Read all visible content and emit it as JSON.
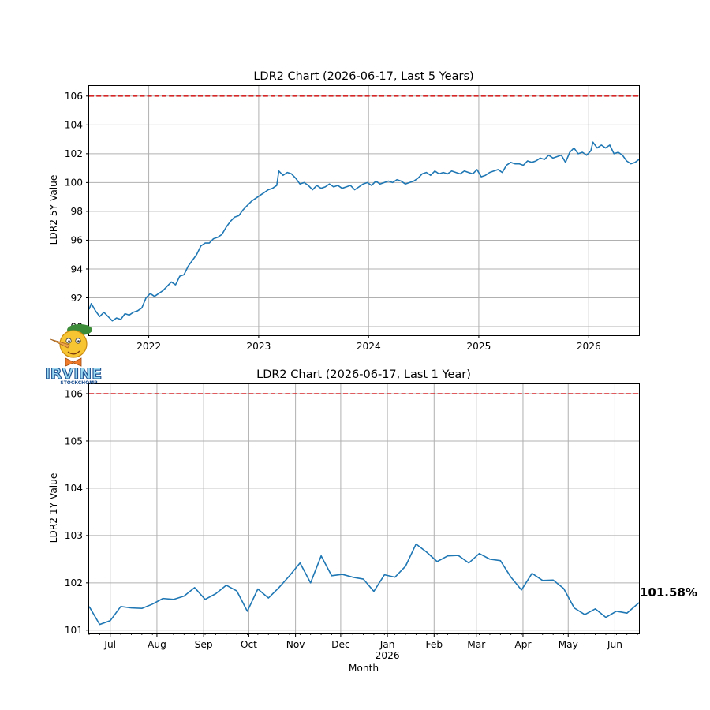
{
  "chart_data": [
    {
      "type": "line",
      "title": "LDR2 Chart (2026-06-17, Last 5 Years)",
      "ylabel": "LDR2 5Y Value",
      "xlabel": "",
      "x_range": [
        "2021-06-17",
        "2026-06-17"
      ],
      "ylim": [
        89.4,
        106.7
      ],
      "y_ticks": [
        90,
        92,
        94,
        96,
        98,
        100,
        102,
        104,
        106
      ],
      "x_ticks": [
        {
          "date": "2022-01-01",
          "label": "2022"
        },
        {
          "date": "2023-01-01",
          "label": "2023"
        },
        {
          "date": "2024-01-01",
          "label": "2024"
        },
        {
          "date": "2025-01-01",
          "label": "2025"
        },
        {
          "date": "2026-01-01",
          "label": "2026"
        }
      ],
      "reference_line": {
        "y": 106,
        "color": "#d62728",
        "style": "dashed"
      },
      "grid": true,
      "series": [
        {
          "color": "#1f77b4",
          "points": [
            [
              "2021-06-17",
              91.2
            ],
            [
              "2021-06-24",
              91.6
            ],
            [
              "2021-07-08",
              91.1
            ],
            [
              "2021-07-22",
              90.7
            ],
            [
              "2021-08-05",
              91.0
            ],
            [
              "2021-08-19",
              90.7
            ],
            [
              "2021-09-02",
              90.4
            ],
            [
              "2021-09-16",
              90.6
            ],
            [
              "2021-09-30",
              90.5
            ],
            [
              "2021-10-14",
              90.9
            ],
            [
              "2021-10-28",
              90.8
            ],
            [
              "2021-11-11",
              91.0
            ],
            [
              "2021-11-25",
              91.1
            ],
            [
              "2021-12-09",
              91.3
            ],
            [
              "2021-12-23",
              92.0
            ],
            [
              "2022-01-06",
              92.3
            ],
            [
              "2022-01-20",
              92.1
            ],
            [
              "2022-02-03",
              92.3
            ],
            [
              "2022-02-17",
              92.5
            ],
            [
              "2022-03-03",
              92.8
            ],
            [
              "2022-03-17",
              93.1
            ],
            [
              "2022-03-31",
              92.9
            ],
            [
              "2022-04-14",
              93.5
            ],
            [
              "2022-04-28",
              93.6
            ],
            [
              "2022-05-12",
              94.2
            ],
            [
              "2022-05-26",
              94.6
            ],
            [
              "2022-06-09",
              95.0
            ],
            [
              "2022-06-23",
              95.6
            ],
            [
              "2022-07-07",
              95.8
            ],
            [
              "2022-07-21",
              95.8
            ],
            [
              "2022-08-04",
              96.1
            ],
            [
              "2022-08-18",
              96.2
            ],
            [
              "2022-09-01",
              96.4
            ],
            [
              "2022-09-15",
              96.9
            ],
            [
              "2022-09-29",
              97.3
            ],
            [
              "2022-10-13",
              97.6
            ],
            [
              "2022-10-27",
              97.7
            ],
            [
              "2022-11-10",
              98.1
            ],
            [
              "2022-11-24",
              98.4
            ],
            [
              "2022-12-08",
              98.7
            ],
            [
              "2022-12-22",
              98.9
            ],
            [
              "2023-01-05",
              99.1
            ],
            [
              "2023-01-19",
              99.3
            ],
            [
              "2023-02-02",
              99.5
            ],
            [
              "2023-02-16",
              99.6
            ],
            [
              "2023-03-02",
              99.8
            ],
            [
              "2023-03-09",
              100.8
            ],
            [
              "2023-03-23",
              100.5
            ],
            [
              "2023-04-06",
              100.7
            ],
            [
              "2023-04-20",
              100.6
            ],
            [
              "2023-05-04",
              100.3
            ],
            [
              "2023-05-18",
              99.9
            ],
            [
              "2023-06-01",
              100.0
            ],
            [
              "2023-06-15",
              99.8
            ],
            [
              "2023-06-29",
              99.5
            ],
            [
              "2023-07-13",
              99.8
            ],
            [
              "2023-07-27",
              99.6
            ],
            [
              "2023-08-10",
              99.7
            ],
            [
              "2023-08-24",
              99.9
            ],
            [
              "2023-09-07",
              99.7
            ],
            [
              "2023-09-21",
              99.8
            ],
            [
              "2023-10-05",
              99.6
            ],
            [
              "2023-10-19",
              99.7
            ],
            [
              "2023-11-02",
              99.8
            ],
            [
              "2023-11-16",
              99.5
            ],
            [
              "2023-11-30",
              99.7
            ],
            [
              "2023-12-14",
              99.9
            ],
            [
              "2023-12-28",
              100.0
            ],
            [
              "2024-01-11",
              99.8
            ],
            [
              "2024-01-25",
              100.1
            ],
            [
              "2024-02-08",
              99.9
            ],
            [
              "2024-02-22",
              100.0
            ],
            [
              "2024-03-07",
              100.1
            ],
            [
              "2024-03-21",
              100.0
            ],
            [
              "2024-04-04",
              100.2
            ],
            [
              "2024-04-18",
              100.1
            ],
            [
              "2024-05-02",
              99.9
            ],
            [
              "2024-05-16",
              100.0
            ],
            [
              "2024-05-30",
              100.1
            ],
            [
              "2024-06-13",
              100.3
            ],
            [
              "2024-06-27",
              100.6
            ],
            [
              "2024-07-11",
              100.7
            ],
            [
              "2024-07-25",
              100.5
            ],
            [
              "2024-08-08",
              100.8
            ],
            [
              "2024-08-22",
              100.6
            ],
            [
              "2024-09-05",
              100.7
            ],
            [
              "2024-09-19",
              100.6
            ],
            [
              "2024-10-03",
              100.8
            ],
            [
              "2024-10-17",
              100.7
            ],
            [
              "2024-10-31",
              100.6
            ],
            [
              "2024-11-14",
              100.8
            ],
            [
              "2024-11-28",
              100.7
            ],
            [
              "2024-12-12",
              100.6
            ],
            [
              "2024-12-26",
              100.9
            ],
            [
              "2025-01-09",
              100.4
            ],
            [
              "2025-01-23",
              100.5
            ],
            [
              "2025-02-06",
              100.7
            ],
            [
              "2025-02-20",
              100.8
            ],
            [
              "2025-03-06",
              100.9
            ],
            [
              "2025-03-20",
              100.7
            ],
            [
              "2025-04-03",
              101.2
            ],
            [
              "2025-04-17",
              101.4
            ],
            [
              "2025-05-01",
              101.3
            ],
            [
              "2025-05-15",
              101.3
            ],
            [
              "2025-05-29",
              101.2
            ],
            [
              "2025-06-12",
              101.5
            ],
            [
              "2025-06-26",
              101.4
            ],
            [
              "2025-07-10",
              101.5
            ],
            [
              "2025-07-24",
              101.7
            ],
            [
              "2025-08-07",
              101.6
            ],
            [
              "2025-08-21",
              101.9
            ],
            [
              "2025-09-04",
              101.7
            ],
            [
              "2025-09-18",
              101.8
            ],
            [
              "2025-10-02",
              101.9
            ],
            [
              "2025-10-16",
              101.4
            ],
            [
              "2025-10-30",
              102.1
            ],
            [
              "2025-11-13",
              102.4
            ],
            [
              "2025-11-27",
              102.0
            ],
            [
              "2025-12-11",
              102.1
            ],
            [
              "2025-12-25",
              101.9
            ],
            [
              "2026-01-08",
              102.2
            ],
            [
              "2026-01-15",
              102.8
            ],
            [
              "2026-01-29",
              102.4
            ],
            [
              "2026-02-12",
              102.6
            ],
            [
              "2026-02-26",
              102.4
            ],
            [
              "2026-03-12",
              102.6
            ],
            [
              "2026-03-26",
              102.0
            ],
            [
              "2026-04-09",
              102.1
            ],
            [
              "2026-04-23",
              101.9
            ],
            [
              "2026-05-07",
              101.5
            ],
            [
              "2026-05-21",
              101.3
            ],
            [
              "2026-06-04",
              101.4
            ],
            [
              "2026-06-17",
              101.6
            ]
          ]
        }
      ]
    },
    {
      "type": "line",
      "title": "LDR2 Chart (2026-06-17, Last 1 Year)",
      "ylabel": "LDR2 1Y Value",
      "xlabel": "Month",
      "x_range": [
        "2025-06-17",
        "2026-06-17"
      ],
      "ylim": [
        100.93,
        106.2
      ],
      "y_ticks": [
        101,
        102,
        103,
        104,
        105,
        106
      ],
      "x_ticks": [
        {
          "date": "2025-07-01",
          "label": "Jul"
        },
        {
          "date": "2025-08-01",
          "label": "Aug"
        },
        {
          "date": "2025-09-01",
          "label": "Sep"
        },
        {
          "date": "2025-10-01",
          "label": "Oct"
        },
        {
          "date": "2025-11-01",
          "label": "Nov"
        },
        {
          "date": "2025-12-01",
          "label": "Dec"
        },
        {
          "date": "2026-01-01",
          "label": "Jan"
        },
        {
          "date": "2026-02-01",
          "label": "Feb"
        },
        {
          "date": "2026-03-01",
          "label": "Mar"
        },
        {
          "date": "2026-04-01",
          "label": "Apr"
        },
        {
          "date": "2026-05-01",
          "label": "May"
        },
        {
          "date": "2026-06-01",
          "label": "Jun"
        }
      ],
      "year_label": {
        "date": "2026-01-01",
        "label": "2026"
      },
      "reference_line": {
        "y": 106,
        "color": "#d62728",
        "style": "dashed"
      },
      "grid": true,
      "end_label": "101.58%",
      "series": [
        {
          "color": "#1f77b4",
          "points": [
            [
              "2025-06-17",
              101.5
            ],
            [
              "2025-06-24",
              101.12
            ],
            [
              "2025-07-01",
              101.2
            ],
            [
              "2025-07-08",
              101.5
            ],
            [
              "2025-07-15",
              101.47
            ],
            [
              "2025-07-22",
              101.46
            ],
            [
              "2025-07-29",
              101.55
            ],
            [
              "2025-08-05",
              101.67
            ],
            [
              "2025-08-12",
              101.65
            ],
            [
              "2025-08-19",
              101.72
            ],
            [
              "2025-08-26",
              101.9
            ],
            [
              "2025-09-02",
              101.65
            ],
            [
              "2025-09-09",
              101.77
            ],
            [
              "2025-09-16",
              101.95
            ],
            [
              "2025-09-23",
              101.83
            ],
            [
              "2025-09-30",
              101.4
            ],
            [
              "2025-10-07",
              101.87
            ],
            [
              "2025-10-14",
              101.68
            ],
            [
              "2025-10-21",
              101.9
            ],
            [
              "2025-10-28",
              102.15
            ],
            [
              "2025-11-04",
              102.42
            ],
            [
              "2025-11-11",
              102.0
            ],
            [
              "2025-11-18",
              102.57
            ],
            [
              "2025-11-25",
              102.15
            ],
            [
              "2025-12-02",
              102.18
            ],
            [
              "2025-12-09",
              102.12
            ],
            [
              "2025-12-16",
              102.08
            ],
            [
              "2025-12-23",
              101.82
            ],
            [
              "2025-12-30",
              102.17
            ],
            [
              "2026-01-06",
              102.12
            ],
            [
              "2026-01-13",
              102.35
            ],
            [
              "2026-01-20",
              102.82
            ],
            [
              "2026-01-27",
              102.65
            ],
            [
              "2026-02-03",
              102.45
            ],
            [
              "2026-02-10",
              102.57
            ],
            [
              "2026-02-17",
              102.58
            ],
            [
              "2026-02-24",
              102.42
            ],
            [
              "2026-03-03",
              102.62
            ],
            [
              "2026-03-10",
              102.5
            ],
            [
              "2026-03-17",
              102.47
            ],
            [
              "2026-03-24",
              102.12
            ],
            [
              "2026-03-31",
              101.85
            ],
            [
              "2026-04-07",
              102.2
            ],
            [
              "2026-04-14",
              102.05
            ],
            [
              "2026-04-21",
              102.06
            ],
            [
              "2026-04-28",
              101.88
            ],
            [
              "2026-05-05",
              101.47
            ],
            [
              "2026-05-12",
              101.33
            ],
            [
              "2026-05-19",
              101.45
            ],
            [
              "2026-05-26",
              101.27
            ],
            [
              "2026-06-02",
              101.4
            ],
            [
              "2026-06-09",
              101.36
            ],
            [
              "2026-06-17",
              101.58
            ]
          ]
        }
      ]
    }
  ],
  "logo": {
    "text": "IRVINE",
    "subtext": "STOCKCHOMP"
  }
}
